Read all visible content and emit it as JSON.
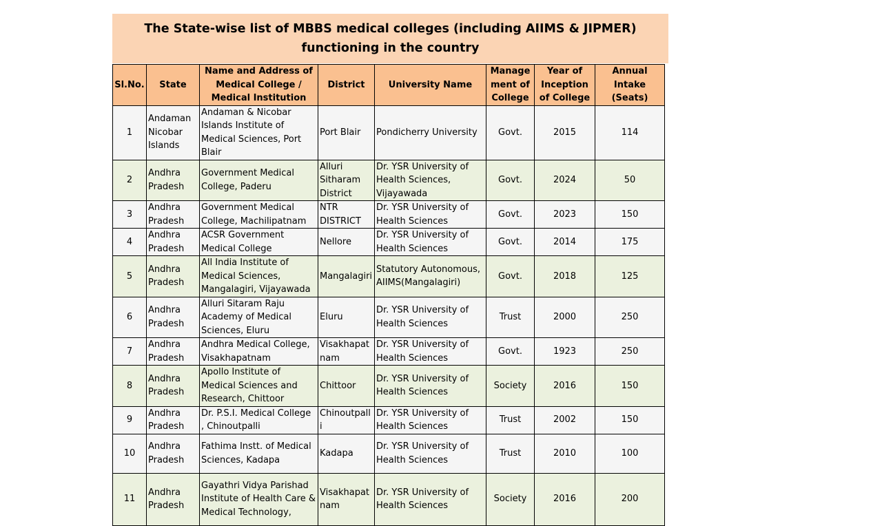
{
  "title": "The State-wise list of MBBS medical colleges (including AIIMS & JIPMER) functioning in the country",
  "table": {
    "headers": [
      "Sl.No.",
      "State",
      "Name and Address of Medical College / Medical Institution",
      "District",
      "University Name",
      "Management of College",
      "Year of Inception of College",
      "Annual Intake (Seats)"
    ],
    "rows": [
      [
        "1",
        "Andaman Nicobar Islands",
        "Andaman & Nicobar Islands Institute of Medical Sciences, Port Blair",
        "Port Blair",
        "Pondicherry University",
        "Govt.",
        "2015",
        "114"
      ],
      [
        "2",
        "Andhra Pradesh",
        "Government Medical College, Paderu",
        "Alluri Sitharam District",
        "Dr. YSR University of Health Sciences, Vijayawada",
        "Govt.",
        "2024",
        "50"
      ],
      [
        "3",
        "Andhra Pradesh",
        "Government Medical College, Machilipatnam",
        "NTR DISTRICT",
        "Dr. YSR University of Health Sciences",
        "Govt.",
        "2023",
        "150"
      ],
      [
        "4",
        "Andhra Pradesh",
        "ACSR Government Medical College",
        "Nellore",
        "Dr. YSR University of Health Sciences",
        "Govt.",
        "2014",
        "175"
      ],
      [
        "5",
        "Andhra Pradesh",
        "All India Institute of Medical Sciences, Mangalagiri, Vijayawada",
        "Mangalagiri",
        "Statutory Autonomous, AIIMS(Mangalagiri)",
        "Govt.",
        "2018",
        "125"
      ],
      [
        "6",
        "Andhra Pradesh",
        "Alluri Sitaram Raju Academy of Medical Sciences, Eluru",
        "Eluru",
        "Dr. YSR University of Health Sciences",
        "Trust",
        "2000",
        "250"
      ],
      [
        "7",
        "Andhra Pradesh",
        "Andhra Medical College, Visakhapatnam",
        "Visakhapatnam",
        "Dr. YSR University of Health Sciences",
        "Govt.",
        "1923",
        "250"
      ],
      [
        "8",
        "Andhra Pradesh",
        "Apollo Institute of Medical Sciences and Research, Chittoor",
        "Chittoor",
        "Dr. YSR University of Health Sciences",
        "Society",
        "2016",
        "150"
      ],
      [
        "9",
        "Andhra Pradesh",
        "Dr. P.S.I. Medical College , Chinoutpalli",
        "Chinoutpalli",
        "Dr. YSR University of Health Sciences",
        "Trust",
        "2002",
        "150"
      ],
      [
        "10",
        "Andhra Pradesh",
        "Fathima Instt. of Medical Sciences, Kadapa",
        "Kadapa",
        "Dr. YSR University of Health Sciences",
        "Trust",
        "2010",
        "100"
      ],
      [
        "11",
        "Andhra Pradesh",
        "Gayathri Vidya Parishad Institute of Health Care & Medical Technology,",
        "Visakhapatnam",
        "Dr. YSR University of Health Sciences",
        "Society",
        "2016",
        "200"
      ]
    ]
  }
}
